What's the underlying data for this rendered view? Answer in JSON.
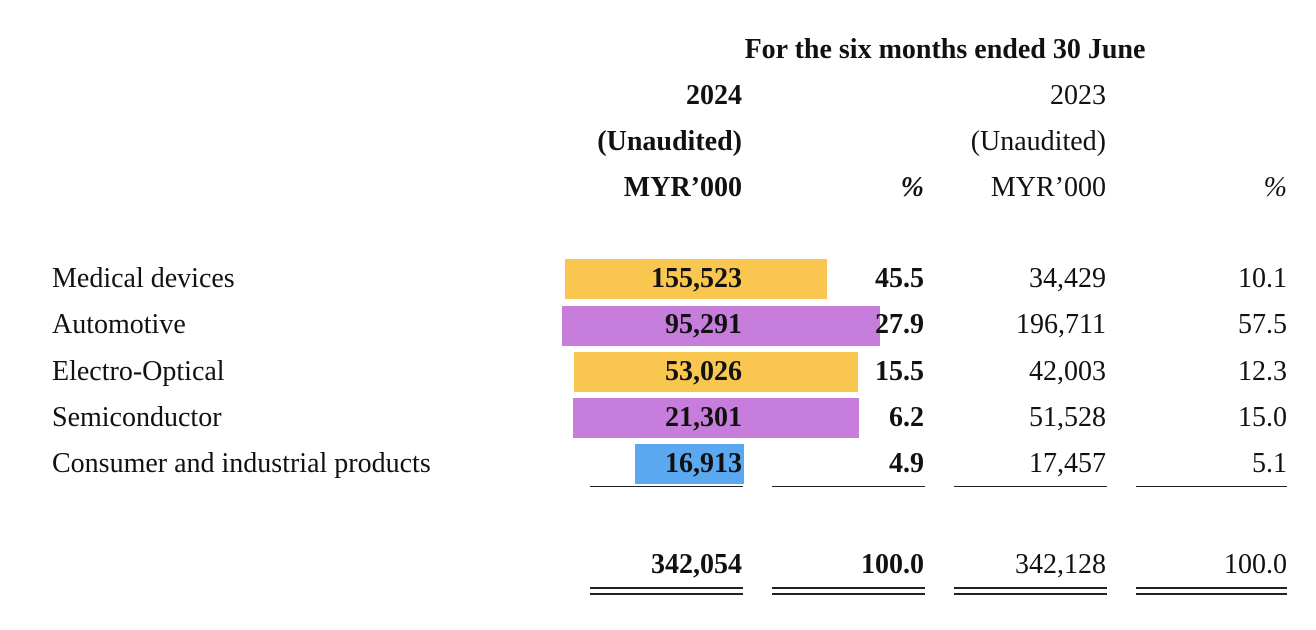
{
  "header": {
    "period": "For the six months ended 30 June",
    "col_2024_year": "2024",
    "col_2024_status": "(Unaudited)",
    "col_2024_unit": "MYR’000",
    "col_2024_pct": "%",
    "col_2023_year": "2023",
    "col_2023_status": "(Unaudited)",
    "col_2023_unit": "MYR’000",
    "col_2023_pct": "%"
  },
  "rows": [
    {
      "label": "Medical devices",
      "v2024": "155,523",
      "p2024": "45.5",
      "v2023": "34,429",
      "p2023": "10.1"
    },
    {
      "label": "Automotive",
      "v2024": "95,291",
      "p2024": "27.9",
      "v2023": "196,711",
      "p2023": "57.5"
    },
    {
      "label": "Electro-Optical",
      "v2024": "53,026",
      "p2024": "15.5",
      "v2023": "42,003",
      "p2023": "12.3"
    },
    {
      "label": "Semiconductor",
      "v2024": "21,301",
      "p2024": "6.2",
      "v2023": "51,528",
      "p2023": "15.0"
    },
    {
      "label": "Consumer and industrial products",
      "v2024": "16,913",
      "p2024": "4.9",
      "v2023": "17,457",
      "p2023": "5.1"
    }
  ],
  "totals": {
    "v2024": "342,054",
    "p2024": "100.0",
    "v2023": "342,128",
    "p2023": "100.0"
  },
  "highlights": {
    "yellow": "#F9C74F",
    "purple": "#C77DDB",
    "blue": "#5AA9F0"
  }
}
